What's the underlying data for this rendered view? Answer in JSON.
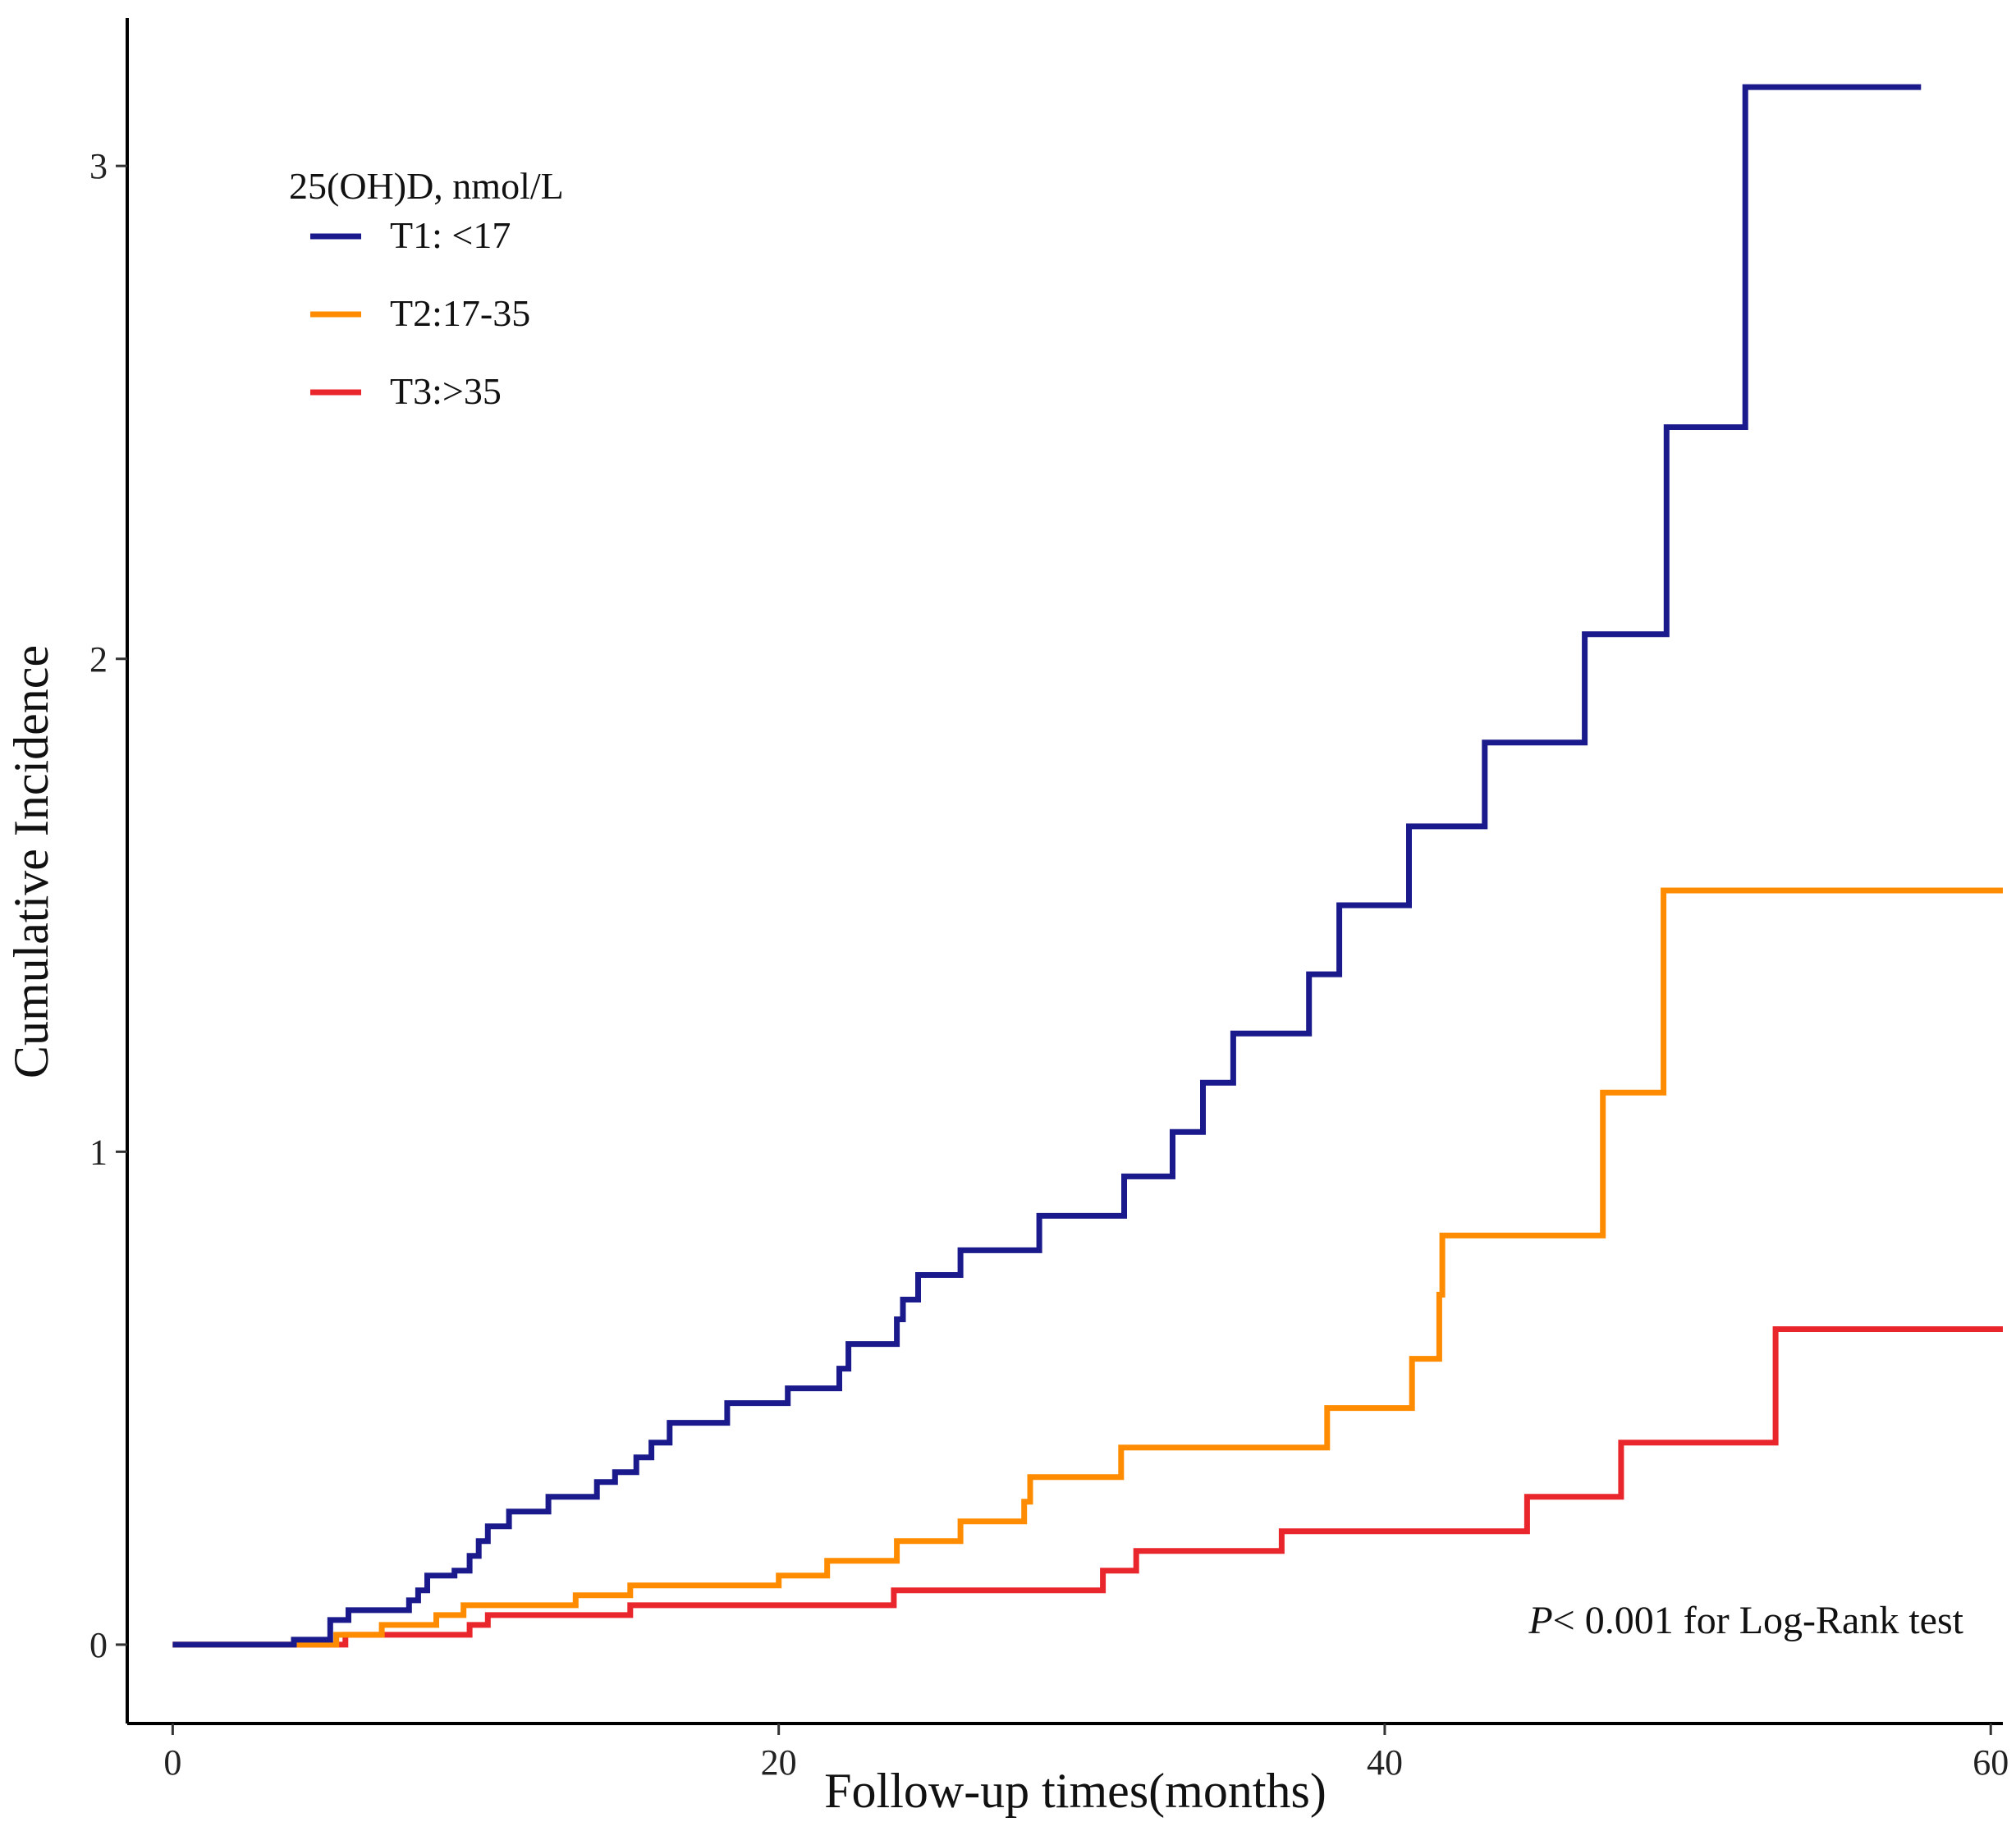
{
  "chart_data": {
    "type": "line",
    "step": true,
    "title": "",
    "xlabel": "Follow-up times(months)",
    "ylabel": "Cumulative Incidence",
    "xlim": [
      -1.5,
      60.4
    ],
    "ylim": [
      -0.16,
      3.3
    ],
    "xticks": [
      0,
      20,
      40,
      60
    ],
    "yticks": [
      0,
      1,
      2,
      3
    ],
    "legend": {
      "title": "25(OH)D, nmol/L",
      "placement": "top-left"
    },
    "annotation": {
      "italic": "P",
      "text": "< 0.001 for Log-Rank test",
      "placement": "bottom-right"
    },
    "series": [
      {
        "name": "T1: <17",
        "color": "#1a1a8c",
        "points": [
          [
            0,
            0
          ],
          [
            4,
            0
          ],
          [
            4,
            0.01
          ],
          [
            5.2,
            0.01
          ],
          [
            5.2,
            0.05
          ],
          [
            5.8,
            0.05
          ],
          [
            5.8,
            0.07
          ],
          [
            7.8,
            0.07
          ],
          [
            7.8,
            0.09
          ],
          [
            8.1,
            0.09
          ],
          [
            8.1,
            0.11
          ],
          [
            8.4,
            0.11
          ],
          [
            8.4,
            0.14
          ],
          [
            9.3,
            0.14
          ],
          [
            9.3,
            0.15
          ],
          [
            9.8,
            0.15
          ],
          [
            9.8,
            0.18
          ],
          [
            10.1,
            0.18
          ],
          [
            10.1,
            0.21
          ],
          [
            10.4,
            0.21
          ],
          [
            10.4,
            0.24
          ],
          [
            11.1,
            0.24
          ],
          [
            11.1,
            0.27
          ],
          [
            12.4,
            0.27
          ],
          [
            12.4,
            0.3
          ],
          [
            14,
            0.3
          ],
          [
            14,
            0.33
          ],
          [
            14.6,
            0.33
          ],
          [
            14.6,
            0.35
          ],
          [
            15.3,
            0.35
          ],
          [
            15.3,
            0.38
          ],
          [
            15.8,
            0.38
          ],
          [
            15.8,
            0.41
          ],
          [
            16.4,
            0.41
          ],
          [
            16.4,
            0.45
          ],
          [
            18.3,
            0.45
          ],
          [
            18.3,
            0.49
          ],
          [
            20.3,
            0.49
          ],
          [
            20.3,
            0.52
          ],
          [
            22,
            0.52
          ],
          [
            22,
            0.56
          ],
          [
            22.3,
            0.56
          ],
          [
            22.3,
            0.61
          ],
          [
            23.9,
            0.61
          ],
          [
            23.9,
            0.66
          ],
          [
            24.1,
            0.66
          ],
          [
            24.1,
            0.7
          ],
          [
            24.6,
            0.7
          ],
          [
            24.6,
            0.75
          ],
          [
            26,
            0.75
          ],
          [
            26,
            0.8
          ],
          [
            28.6,
            0.8
          ],
          [
            28.6,
            0.87
          ],
          [
            31.4,
            0.87
          ],
          [
            31.4,
            0.95
          ],
          [
            33,
            0.95
          ],
          [
            33,
            1.04
          ],
          [
            34,
            1.04
          ],
          [
            34,
            1.14
          ],
          [
            35,
            1.14
          ],
          [
            35,
            1.24
          ],
          [
            37.5,
            1.24
          ],
          [
            37.5,
            1.36
          ],
          [
            38.5,
            1.36
          ],
          [
            38.5,
            1.5
          ],
          [
            40.8,
            1.5
          ],
          [
            40.8,
            1.66
          ],
          [
            43.3,
            1.66
          ],
          [
            43.3,
            1.83
          ],
          [
            46.6,
            1.83
          ],
          [
            46.6,
            2.05
          ],
          [
            49.3,
            2.05
          ],
          [
            49.3,
            2.47
          ],
          [
            51.9,
            2.47
          ],
          [
            51.9,
            3.16
          ],
          [
            57.7,
            3.16
          ]
        ]
      },
      {
        "name": "T2:17-35",
        "color": "#ff8c00",
        "points": [
          [
            0,
            0
          ],
          [
            5.4,
            0
          ],
          [
            5.4,
            0.02
          ],
          [
            6.9,
            0.02
          ],
          [
            6.9,
            0.04
          ],
          [
            8.7,
            0.04
          ],
          [
            8.7,
            0.06
          ],
          [
            9.6,
            0.06
          ],
          [
            9.6,
            0.08
          ],
          [
            13.3,
            0.08
          ],
          [
            13.3,
            0.1
          ],
          [
            15.1,
            0.1
          ],
          [
            15.1,
            0.12
          ],
          [
            20,
            0.12
          ],
          [
            20,
            0.14
          ],
          [
            21.6,
            0.14
          ],
          [
            21.6,
            0.17
          ],
          [
            23.9,
            0.17
          ],
          [
            23.9,
            0.21
          ],
          [
            26,
            0.21
          ],
          [
            26,
            0.25
          ],
          [
            28.1,
            0.25
          ],
          [
            28.1,
            0.29
          ],
          [
            28.3,
            0.29
          ],
          [
            28.3,
            0.34
          ],
          [
            31.3,
            0.34
          ],
          [
            31.3,
            0.4
          ],
          [
            38.1,
            0.4
          ],
          [
            38.1,
            0.48
          ],
          [
            40.9,
            0.48
          ],
          [
            40.9,
            0.58
          ],
          [
            41.8,
            0.58
          ],
          [
            41.8,
            0.71
          ],
          [
            41.9,
            0.71
          ],
          [
            41.9,
            0.83
          ],
          [
            47.2,
            0.83
          ],
          [
            47.2,
            1.12
          ],
          [
            49.2,
            1.12
          ],
          [
            49.2,
            1.53
          ],
          [
            60.4,
            1.53
          ]
        ]
      },
      {
        "name": "T3:>35",
        "color": "#e8262b",
        "points": [
          [
            0,
            0
          ],
          [
            5.7,
            0
          ],
          [
            5.7,
            0.02
          ],
          [
            9.8,
            0.02
          ],
          [
            9.8,
            0.04
          ],
          [
            10.4,
            0.04
          ],
          [
            10.4,
            0.06
          ],
          [
            15.1,
            0.06
          ],
          [
            15.1,
            0.08
          ],
          [
            23.8,
            0.08
          ],
          [
            23.8,
            0.11
          ],
          [
            30.7,
            0.11
          ],
          [
            30.7,
            0.15
          ],
          [
            31.8,
            0.15
          ],
          [
            31.8,
            0.19
          ],
          [
            36.6,
            0.19
          ],
          [
            36.6,
            0.23
          ],
          [
            44.7,
            0.23
          ],
          [
            44.7,
            0.3
          ],
          [
            47.8,
            0.3
          ],
          [
            47.8,
            0.41
          ],
          [
            52.9,
            0.41
          ],
          [
            52.9,
            0.64
          ],
          [
            60.4,
            0.64
          ]
        ]
      }
    ]
  }
}
